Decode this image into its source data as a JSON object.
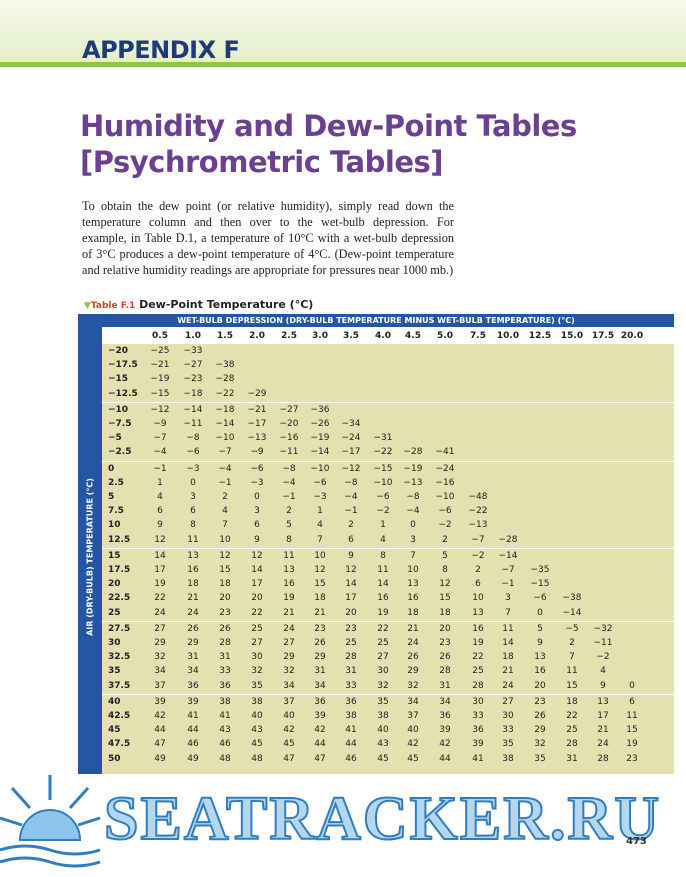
{
  "header": {
    "appendix": "APPENDIX F",
    "title": [
      "Humidity and Dew-Point Tables",
      "[Psychrometric Tables]"
    ],
    "intro": "To obtain the dew point (or relative humidity), simply read down the temperature column and then over to the wet-bulb depression. For example, in Table D.1, a temperature of 10°C with a wet-bulb depression of 3°C produces a dew-point temperature of 4°C. (Dew-point temperature and relative humidity readings are appropriate for pressures near 1000 mb.)"
  },
  "table": {
    "label": "Table F.1",
    "caption": "Dew-Point Temperature (°C)",
    "header": "WET-BULB DEPRESSION (DRY-BULB TEMPERATURE MINUS WET-BULB TEMPERATURE) (°C)",
    "side": "AIR (DRY-BULB) TEMPERATURE (°C)",
    "columns": [
      "0.5",
      "1.0",
      "1.5",
      "2.0",
      "2.5",
      "3.0",
      "3.5",
      "4.0",
      "4.5",
      "5.0",
      "7.5",
      "10.0",
      "12.5",
      "15.0",
      "17.5",
      "20.0"
    ],
    "groups": [
      [
        {
          "t": "−20",
          "v": [
            "−25",
            "−33"
          ]
        },
        {
          "t": "−17.5",
          "v": [
            "−21",
            "−27",
            "−38"
          ]
        },
        {
          "t": "−15",
          "v": [
            "−19",
            "−23",
            "−28"
          ]
        },
        {
          "t": "−12.5",
          "v": [
            "−15",
            "−18",
            "−22",
            "−29"
          ]
        }
      ],
      [
        {
          "t": "−10",
          "v": [
            "−12",
            "−14",
            "−18",
            "−21",
            "−27",
            "−36"
          ]
        },
        {
          "t": "−7.5",
          "v": [
            "−9",
            "−11",
            "−14",
            "−17",
            "−20",
            "−26",
            "−34"
          ]
        },
        {
          "t": "−5",
          "v": [
            "−7",
            "−8",
            "−10",
            "−13",
            "−16",
            "−19",
            "−24",
            "−31"
          ]
        },
        {
          "t": "−2.5",
          "v": [
            "−4",
            "−6",
            "−7",
            "−9",
            "−11",
            "−14",
            "−17",
            "−22",
            "−28",
            "−41"
          ]
        }
      ],
      [
        {
          "t": "0",
          "v": [
            "−1",
            "−3",
            "−4",
            "−6",
            "−8",
            "−10",
            "−12",
            "−15",
            "−19",
            "−24"
          ]
        },
        {
          "t": "2.5",
          "v": [
            "1",
            "0",
            "−1",
            "−3",
            "−4",
            "−6",
            "−8",
            "−10",
            "−13",
            "−16"
          ]
        },
        {
          "t": "5",
          "v": [
            "4",
            "3",
            "2",
            "0",
            "−1",
            "−3",
            "−4",
            "−6",
            "−8",
            "−10",
            "−48"
          ]
        },
        {
          "t": "7.5",
          "v": [
            "6",
            "6",
            "4",
            "3",
            "2",
            "1",
            "−1",
            "−2",
            "−4",
            "−6",
            "−22"
          ]
        },
        {
          "t": "10",
          "v": [
            "9",
            "8",
            "7",
            "6",
            "5",
            "4",
            "2",
            "1",
            "0",
            "−2",
            "−13"
          ]
        },
        {
          "t": "12.5",
          "v": [
            "12",
            "11",
            "10",
            "9",
            "8",
            "7",
            "6",
            "4",
            "3",
            "2",
            "−7",
            "−28"
          ]
        }
      ],
      [
        {
          "t": "15",
          "v": [
            "14",
            "13",
            "12",
            "12",
            "11",
            "10",
            "9",
            "8",
            "7",
            "5",
            "−2",
            "−14"
          ]
        },
        {
          "t": "17.5",
          "v": [
            "17",
            "16",
            "15",
            "14",
            "13",
            "12",
            "12",
            "11",
            "10",
            "8",
            "2",
            "−7",
            "−35"
          ]
        },
        {
          "t": "20",
          "v": [
            "19",
            "18",
            "18",
            "17",
            "16",
            "15",
            "14",
            "14",
            "13",
            "12",
            "6",
            "−1",
            "−15"
          ]
        },
        {
          "t": "22.5",
          "v": [
            "22",
            "21",
            "20",
            "20",
            "19",
            "18",
            "17",
            "16",
            "16",
            "15",
            "10",
            "3",
            "−6",
            "−38"
          ]
        },
        {
          "t": "25",
          "v": [
            "24",
            "24",
            "23",
            "22",
            "21",
            "21",
            "20",
            "19",
            "18",
            "18",
            "13",
            "7",
            "0",
            "−14"
          ]
        }
      ],
      [
        {
          "t": "27.5",
          "v": [
            "27",
            "26",
            "26",
            "25",
            "24",
            "23",
            "23",
            "22",
            "21",
            "20",
            "16",
            "11",
            "5",
            "−5",
            "−32"
          ]
        },
        {
          "t": "30",
          "v": [
            "29",
            "29",
            "28",
            "27",
            "27",
            "26",
            "25",
            "25",
            "24",
            "23",
            "19",
            "14",
            "9",
            "2",
            "−11"
          ]
        },
        {
          "t": "32.5",
          "v": [
            "32",
            "31",
            "31",
            "30",
            "29",
            "29",
            "28",
            "27",
            "26",
            "26",
            "22",
            "18",
            "13",
            "7",
            "−2"
          ]
        },
        {
          "t": "35",
          "v": [
            "34",
            "34",
            "33",
            "32",
            "32",
            "31",
            "31",
            "30",
            "29",
            "28",
            "25",
            "21",
            "16",
            "11",
            "4"
          ]
        },
        {
          "t": "37.5",
          "v": [
            "37",
            "36",
            "36",
            "35",
            "34",
            "34",
            "33",
            "32",
            "32",
            "31",
            "28",
            "24",
            "20",
            "15",
            "9",
            "0"
          ]
        }
      ],
      [
        {
          "t": "40",
          "v": [
            "39",
            "39",
            "38",
            "38",
            "37",
            "36",
            "36",
            "35",
            "34",
            "34",
            "30",
            "27",
            "23",
            "18",
            "13",
            "6"
          ]
        },
        {
          "t": "42.5",
          "v": [
            "42",
            "41",
            "41",
            "40",
            "40",
            "39",
            "38",
            "38",
            "37",
            "36",
            "33",
            "30",
            "26",
            "22",
            "17",
            "11"
          ]
        },
        {
          "t": "45",
          "v": [
            "44",
            "44",
            "43",
            "43",
            "42",
            "42",
            "41",
            "40",
            "40",
            "39",
            "36",
            "33",
            "29",
            "25",
            "21",
            "15"
          ]
        },
        {
          "t": "47.5",
          "v": [
            "47",
            "46",
            "46",
            "45",
            "45",
            "44",
            "44",
            "43",
            "42",
            "42",
            "39",
            "35",
            "32",
            "28",
            "24",
            "19"
          ]
        },
        {
          "t": "50",
          "v": [
            "49",
            "49",
            "48",
            "48",
            "47",
            "47",
            "46",
            "45",
            "45",
            "44",
            "41",
            "38",
            "35",
            "31",
            "28",
            "23"
          ]
        }
      ]
    ]
  },
  "footer": {
    "page": "473",
    "watermark": "SEATRACKER.RU"
  }
}
